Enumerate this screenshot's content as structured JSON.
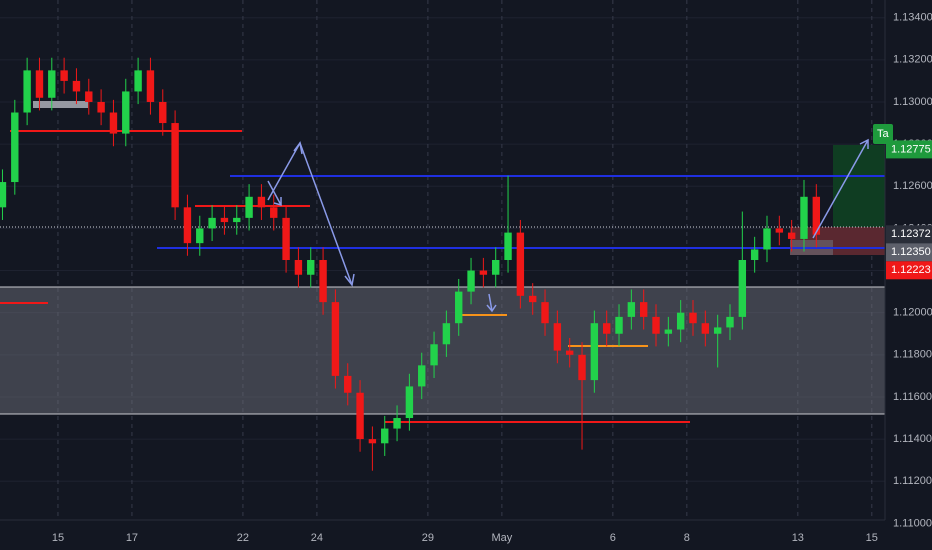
{
  "chart_data": {
    "type": "candlestick",
    "x": [
      0,
      1,
      2,
      3,
      4,
      5,
      6,
      7,
      8,
      9,
      10,
      11,
      12,
      13,
      14,
      15,
      16,
      17,
      18,
      19,
      20,
      21,
      22,
      23,
      24,
      25,
      26,
      27,
      28,
      29,
      30,
      31,
      32,
      33,
      34,
      35,
      36,
      37,
      38,
      39,
      40,
      41,
      42,
      43,
      44,
      45,
      46,
      47,
      48,
      49,
      50,
      51,
      52,
      53,
      54,
      55,
      56,
      57,
      58,
      59,
      60,
      61,
      62,
      63,
      64,
      65,
      66
    ],
    "opens": [
      1.125,
      1.1262,
      1.1295,
      1.1315,
      1.1302,
      1.1315,
      1.131,
      1.1305,
      1.13,
      1.1295,
      1.1285,
      1.1305,
      1.1315,
      1.13,
      1.129,
      1.125,
      1.1233,
      1.124,
      1.1245,
      1.1243,
      1.1245,
      1.1255,
      1.125,
      1.1245,
      1.1225,
      1.1218,
      1.1225,
      1.1205,
      1.117,
      1.1162,
      1.114,
      1.1138,
      1.1145,
      1.115,
      1.1165,
      1.1175,
      1.1185,
      1.1195,
      1.121,
      1.122,
      1.1218,
      1.1225,
      1.1238,
      1.1208,
      1.1205,
      1.1195,
      1.1182,
      1.118,
      1.1168,
      1.1195,
      1.119,
      1.1198,
      1.1205,
      1.1198,
      1.119,
      1.1192,
      1.12,
      1.1195,
      1.119,
      1.1193,
      1.1198,
      1.1225,
      1.123,
      1.124,
      1.1238,
      1.1235,
      1.1255
    ],
    "highs": [
      1.1268,
      1.1301,
      1.1321,
      1.1321,
      1.1321,
      1.1321,
      1.1316,
      1.1311,
      1.1306,
      1.1301,
      1.1311,
      1.1321,
      1.1321,
      1.1306,
      1.1296,
      1.1256,
      1.1246,
      1.1251,
      1.1251,
      1.1251,
      1.1261,
      1.1261,
      1.1256,
      1.1251,
      1.1231,
      1.1231,
      1.1231,
      1.1211,
      1.1176,
      1.1168,
      1.1146,
      1.1151,
      1.1156,
      1.1171,
      1.1181,
      1.1191,
      1.1201,
      1.1216,
      1.1226,
      1.1226,
      1.1231,
      1.1265,
      1.1244,
      1.1214,
      1.1211,
      1.1201,
      1.1188,
      1.1186,
      1.1201,
      1.1201,
      1.1204,
      1.1211,
      1.1211,
      1.1204,
      1.1198,
      1.1206,
      1.1206,
      1.1201,
      1.1199,
      1.1204,
      1.1248,
      1.1236,
      1.1246,
      1.1246,
      1.1244,
      1.1263,
      1.1261
    ],
    "lows": [
      1.1244,
      1.1256,
      1.1289,
      1.1296,
      1.1296,
      1.1304,
      1.1299,
      1.1294,
      1.1289,
      1.1279,
      1.1279,
      1.1299,
      1.1294,
      1.1284,
      1.1244,
      1.1227,
      1.1227,
      1.1234,
      1.1237,
      1.1237,
      1.1239,
      1.1244,
      1.1239,
      1.1219,
      1.1212,
      1.1212,
      1.1199,
      1.1164,
      1.1156,
      1.1134,
      1.1125,
      1.1132,
      1.1139,
      1.1144,
      1.1159,
      1.1169,
      1.1179,
      1.1189,
      1.1204,
      1.1212,
      1.1212,
      1.1219,
      1.1202,
      1.1199,
      1.1189,
      1.1176,
      1.1174,
      1.1135,
      1.1162,
      1.1184,
      1.1184,
      1.1192,
      1.1192,
      1.1184,
      1.1184,
      1.1186,
      1.1189,
      1.1184,
      1.1174,
      1.1187,
      1.1192,
      1.1219,
      1.1224,
      1.1232,
      1.1229,
      1.1229,
      1.1231
    ],
    "closes": [
      1.1262,
      1.1295,
      1.1315,
      1.1302,
      1.1315,
      1.131,
      1.1305,
      1.13,
      1.1295,
      1.1285,
      1.1305,
      1.1315,
      1.13,
      1.129,
      1.125,
      1.1233,
      1.124,
      1.1245,
      1.1243,
      1.1245,
      1.1255,
      1.125,
      1.1245,
      1.1225,
      1.1218,
      1.1225,
      1.1205,
      1.117,
      1.1162,
      1.114,
      1.1138,
      1.1145,
      1.115,
      1.1165,
      1.1175,
      1.1185,
      1.1195,
      1.121,
      1.122,
      1.1218,
      1.1225,
      1.1238,
      1.1208,
      1.1205,
      1.1195,
      1.1182,
      1.118,
      1.1168,
      1.1195,
      1.119,
      1.1198,
      1.1205,
      1.1198,
      1.119,
      1.1192,
      1.12,
      1.1195,
      1.119,
      1.1193,
      1.1198,
      1.1225,
      1.123,
      1.124,
      1.1238,
      1.1235,
      1.1255,
      1.1237
    ],
    "up_color": "#22d24b",
    "down_color": "#f01818",
    "xlim": [
      -0.2,
      71.57
    ],
    "xticks": [
      {
        "value": 4.5,
        "label": "15"
      },
      {
        "value": 10.5,
        "label": "17"
      },
      {
        "value": 19.5,
        "label": "22"
      },
      {
        "value": 25.5,
        "label": "24"
      },
      {
        "value": 34.5,
        "label": "29"
      },
      {
        "value": 40.5,
        "label": "May"
      },
      {
        "value": 49.5,
        "label": "6"
      },
      {
        "value": 55.5,
        "label": "8"
      },
      {
        "value": 64.5,
        "label": "13"
      },
      {
        "value": 70.5,
        "label": "15"
      }
    ],
    "ylim": [
      1.11016,
      1.13484
    ],
    "yticks": [
      {
        "value": 1.134,
        "label": "1.13400"
      },
      {
        "value": 1.132,
        "label": "1.13200"
      },
      {
        "value": 1.13,
        "label": "1.13000"
      },
      {
        "value": 1.128,
        "label": "1.12800"
      },
      {
        "value": 1.126,
        "label": "1.12600"
      },
      {
        "value": 1.124,
        "label": "1.12400"
      },
      {
        "value": 1.122,
        "label": "1.12200"
      },
      {
        "value": 1.12,
        "label": "1.12000"
      },
      {
        "value": 1.118,
        "label": "1.11800"
      },
      {
        "value": 1.116,
        "label": "1.11600"
      },
      {
        "value": 1.114,
        "label": "1.11400"
      },
      {
        "value": 1.112,
        "label": "1.11200"
      },
      {
        "value": 1.11,
        "label": "1.11000"
      }
    ],
    "price_labels": [
      {
        "value": 1.12775,
        "label": "1.12775",
        "color": "#1e9a3c"
      },
      {
        "value": 1.12372,
        "label": "1.12372",
        "color": "#2a2e39"
      },
      {
        "value": 1.1235,
        "label": "1.12350",
        "color": "#5d606b"
      },
      {
        "value": 1.12223,
        "label": "1.12223",
        "color": "#f01818"
      }
    ],
    "target_label": "Ta",
    "grid": true
  }
}
